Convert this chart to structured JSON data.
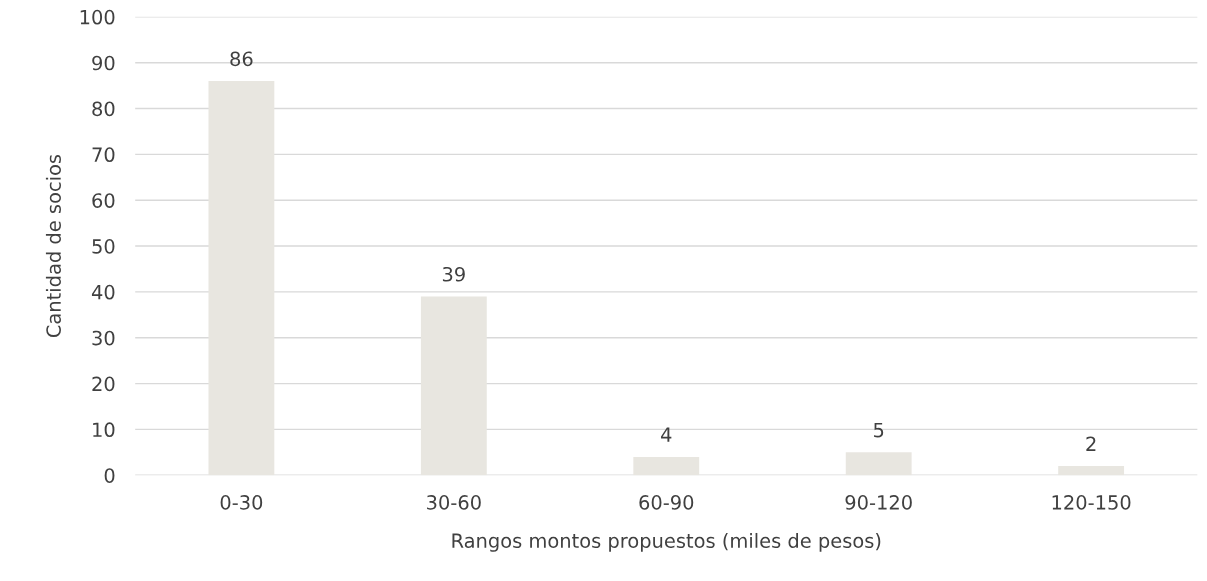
{
  "chart_data": {
    "type": "bar",
    "xlabel": "Rangos montos propuestos (miles de pesos)",
    "ylabel": "Cantidad de socios",
    "categories": [
      "0-30",
      "30-60",
      "60-90",
      "90-120",
      "120-150"
    ],
    "values": [
      86,
      39,
      4,
      5,
      2
    ],
    "color": "#e8e6e0",
    "ylim": [
      0,
      100
    ],
    "yticks": [
      0,
      10,
      20,
      30,
      40,
      50,
      60,
      70,
      80,
      90,
      100
    ],
    "grid": "y",
    "data_labels": true
  }
}
